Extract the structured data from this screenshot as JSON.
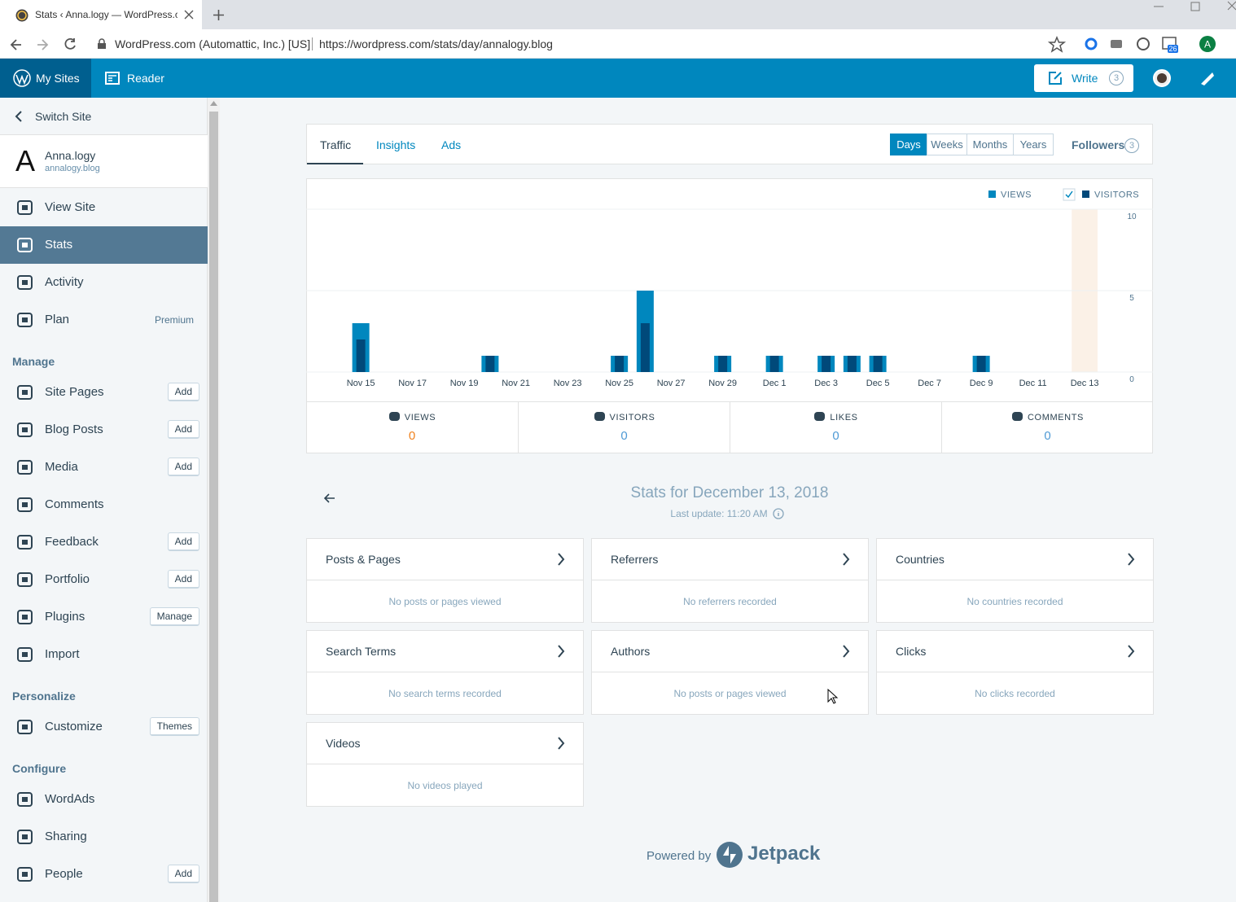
{
  "browser": {
    "tab_title": "Stats ‹ Anna.logy — WordPress.c",
    "site_identity": "WordPress.com (Automattic, Inc.) [US]",
    "url": "https://wordpress.com/stats/day/annalogy.blog",
    "extension_badge": "26",
    "profile": "A"
  },
  "masterbar": {
    "my_sites": "My Sites",
    "reader": "Reader",
    "write": "Write",
    "drafts": 3
  },
  "sidebar": {
    "switch_site": "Switch Site",
    "site_initial": "A",
    "site_name": "Anna.logy",
    "site_domain": "annalogy.blog",
    "groups": [
      {
        "items": [
          {
            "label": "View Site"
          },
          {
            "label": "Stats",
            "selected": true
          },
          {
            "label": "Activity"
          },
          {
            "label": "Plan",
            "badge": "Premium"
          }
        ]
      },
      {
        "heading": "Manage",
        "items": [
          {
            "label": "Site Pages",
            "button": "Add"
          },
          {
            "label": "Blog Posts",
            "button": "Add"
          },
          {
            "label": "Media",
            "button": "Add"
          },
          {
            "label": "Comments"
          },
          {
            "label": "Feedback",
            "button": "Add"
          },
          {
            "label": "Portfolio",
            "button": "Add"
          },
          {
            "label": "Plugins",
            "button": "Manage"
          },
          {
            "label": "Import"
          }
        ]
      },
      {
        "heading": "Personalize",
        "items": [
          {
            "label": "Customize",
            "button": "Themes"
          }
        ]
      },
      {
        "heading": "Configure",
        "items": [
          {
            "label": "WordAds"
          },
          {
            "label": "Sharing"
          },
          {
            "label": "People",
            "button": "Add"
          }
        ]
      }
    ]
  },
  "tabs": [
    "Traffic",
    "Insights",
    "Ads"
  ],
  "periods": [
    "Days",
    "Weeks",
    "Months",
    "Years"
  ],
  "followers": "Followers",
  "followers_count": 3,
  "chart_data": {
    "type": "bar",
    "categories": [
      null,
      "Nov 15",
      null,
      "Nov 17",
      null,
      "Nov 19",
      null,
      "Nov 21",
      null,
      "Nov 23",
      null,
      "Nov 25",
      null,
      "Nov 27",
      null,
      "Nov 29",
      null,
      "Dec 1",
      null,
      "Dec 3",
      null,
      "Dec 5",
      null,
      "Dec 7",
      null,
      "Dec 9",
      null,
      "Dec 11",
      null,
      "Dec 13"
    ],
    "series": [
      {
        "name": "VIEWS",
        "color": "#0087be",
        "values": [
          0,
          3,
          0,
          0,
          0,
          0,
          1,
          0,
          0,
          0,
          0,
          1,
          5,
          0,
          0,
          1,
          0,
          1,
          0,
          1,
          1,
          1,
          0,
          0,
          0,
          1,
          0,
          0,
          0,
          0
        ]
      },
      {
        "name": "VISITORS",
        "color": "#00497a",
        "values": [
          0,
          2,
          0,
          0,
          0,
          0,
          1,
          0,
          0,
          0,
          0,
          1,
          3,
          0,
          0,
          1,
          0,
          1,
          0,
          1,
          1,
          1,
          0,
          0,
          0,
          1,
          0,
          0,
          0,
          0
        ]
      }
    ],
    "ylim": [
      0,
      10
    ],
    "yticks": [
      0,
      5,
      10
    ],
    "grid": true
  },
  "summary": [
    {
      "label": "VIEWS",
      "value": 0
    },
    {
      "label": "VISITORS",
      "value": 0
    },
    {
      "label": "LIKES",
      "value": 0
    },
    {
      "label": "COMMENTS",
      "value": 0
    }
  ],
  "stats_title": "Stats for December 13, 2018",
  "last_update": "Last update: 11:20 AM",
  "modules": [
    {
      "title": "Posts & Pages",
      "empty": "No posts or pages viewed"
    },
    {
      "title": "Referrers",
      "empty": "No referrers recorded"
    },
    {
      "title": "Countries",
      "empty": "No countries recorded"
    },
    {
      "title": "Search Terms",
      "empty": "No search terms recorded"
    },
    {
      "title": "Authors",
      "empty": "No posts or pages viewed"
    },
    {
      "title": "Clicks",
      "empty": "No clicks recorded"
    },
    {
      "title": "Videos",
      "empty": "No videos played"
    }
  ],
  "footer": {
    "powered_by": "Powered by",
    "brand": "Jetpack"
  }
}
